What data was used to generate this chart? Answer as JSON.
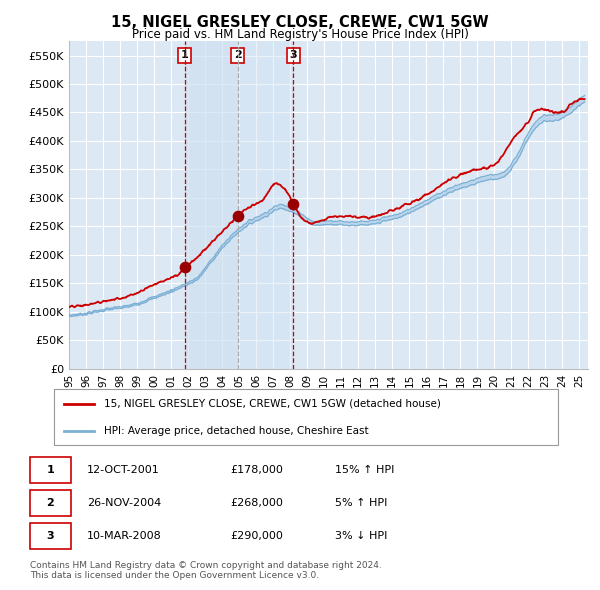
{
  "title": "15, NIGEL GRESLEY CLOSE, CREWE, CW1 5GW",
  "subtitle": "Price paid vs. HM Land Registry's House Price Index (HPI)",
  "xlim": [
    1995.0,
    2025.5
  ],
  "ylim": [
    0,
    575000
  ],
  "yticks": [
    0,
    50000,
    100000,
    150000,
    200000,
    250000,
    300000,
    350000,
    400000,
    450000,
    500000,
    550000
  ],
  "ytick_labels": [
    "£0",
    "£50K",
    "£100K",
    "£150K",
    "£200K",
    "£250K",
    "£300K",
    "£350K",
    "£400K",
    "£450K",
    "£500K",
    "£550K"
  ],
  "xtick_years": [
    1995,
    1996,
    1997,
    1998,
    1999,
    2000,
    2001,
    2002,
    2003,
    2004,
    2005,
    2006,
    2007,
    2008,
    2009,
    2010,
    2011,
    2012,
    2013,
    2014,
    2015,
    2016,
    2017,
    2018,
    2019,
    2020,
    2021,
    2022,
    2023,
    2024,
    2025
  ],
  "background_color": "#dce9f5",
  "grid_color": "#ffffff",
  "sale_color": "#cc0000",
  "hpi_line_color": "#7bafd4",
  "hpi_fill_color": "#b8d4eb",
  "vline1_color": "#cc0000",
  "vline2_color": "#aaaaaa",
  "vline3_color": "#cc0000",
  "span_color": "#cfe0f0",
  "purchases": [
    {
      "date_year": 2001.79,
      "price": 178000,
      "label": "1"
    },
    {
      "date_year": 2004.91,
      "price": 268000,
      "label": "2"
    },
    {
      "date_year": 2008.19,
      "price": 290000,
      "label": "3"
    }
  ],
  "legend_sale_label": "15, NIGEL GRESLEY CLOSE, CREWE, CW1 5GW (detached house)",
  "legend_hpi_label": "HPI: Average price, detached house, Cheshire East",
  "table_data": [
    {
      "num": "1",
      "date": "12-OCT-2001",
      "price": "£178,000",
      "change": "15% ↑ HPI"
    },
    {
      "num": "2",
      "date": "26-NOV-2004",
      "price": "£268,000",
      "change": "5% ↑ HPI"
    },
    {
      "num": "3",
      "date": "10-MAR-2008",
      "price": "£290,000",
      "change": "3% ↓ HPI"
    }
  ],
  "footnote": "Contains HM Land Registry data © Crown copyright and database right 2024.\nThis data is licensed under the Open Government Licence v3.0."
}
